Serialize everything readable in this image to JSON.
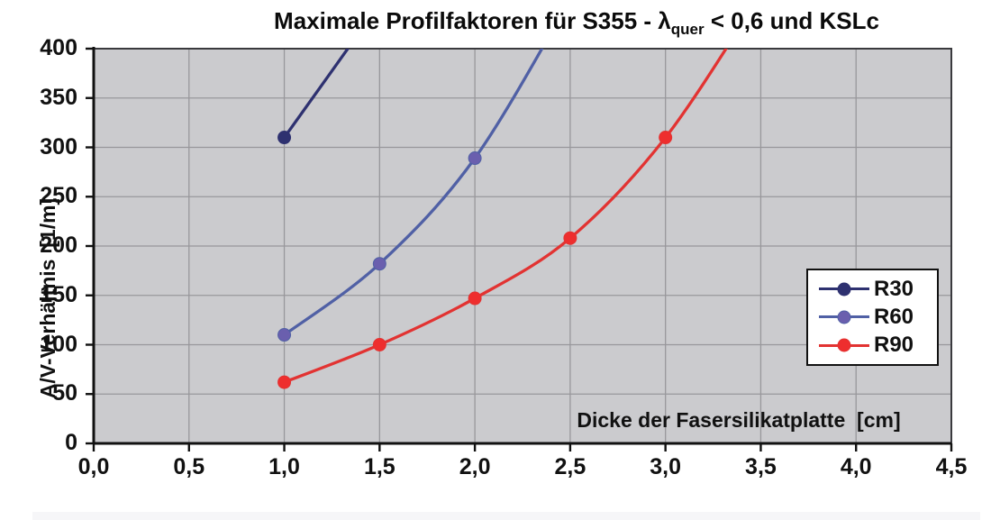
{
  "title": {
    "prefix": "Maximale Profilfaktoren für S355 - ",
    "lambda": "λ",
    "lambda_subscript": "quer",
    "suffix": " < 0,6 und KSLc"
  },
  "chart_data": {
    "type": "line",
    "title": "Maximale Profilfaktoren für S355 - λquer < 0,6 und KSLc",
    "xlabel": "Dicke der Fasersilikatplatte  [cm]",
    "ylabel": "A/V-Verhältnis  [1/m]",
    "xlim": [
      0,
      4.5
    ],
    "ylim": [
      0,
      400
    ],
    "grid": true,
    "legend_position": "right-middle",
    "x_ticks": [
      "0,0",
      "0,5",
      "1,0",
      "1,5",
      "2,0",
      "2,5",
      "3,0",
      "3,5",
      "4,0",
      "4,5"
    ],
    "x_tick_values": [
      0,
      0.5,
      1,
      1.5,
      2,
      2.5,
      3,
      3.5,
      4,
      4.5
    ],
    "y_ticks": [
      "0",
      "50",
      "100",
      "150",
      "200",
      "250",
      "300",
      "350",
      "400"
    ],
    "y_tick_values": [
      0,
      50,
      100,
      150,
      200,
      250,
      300,
      350,
      400
    ],
    "series": [
      {
        "name": "R30",
        "color": "#2e3170",
        "marker_color": "#2e3170",
        "points": [
          [
            1.0,
            310
          ]
        ],
        "offchart_continuation": [
          1.5,
          445
        ]
      },
      {
        "name": "R60",
        "color": "#5060a5",
        "marker_color": "#6a5fae",
        "points": [
          [
            1.0,
            110
          ],
          [
            1.5,
            182
          ],
          [
            2.0,
            289
          ]
        ],
        "offchart_continuation": [
          2.5,
          450
        ]
      },
      {
        "name": "R90",
        "color": "#e23332",
        "marker_color": "#ee2e2e",
        "points": [
          [
            1.0,
            62
          ],
          [
            1.5,
            100
          ],
          [
            2.0,
            147
          ],
          [
            2.5,
            208
          ],
          [
            3.0,
            310
          ]
        ],
        "offchart_continuation": [
          3.5,
          455
        ]
      }
    ]
  },
  "colors": {
    "page_bg": "#ffffff",
    "plot_bg": "#cbcbce",
    "gridline": "#98979b",
    "plot_border": "#3a3a3e",
    "axis": "#111111",
    "legend_bg": "#ffffff",
    "legend_border": "#111111",
    "bottom_strip": "#f6f6f8"
  }
}
